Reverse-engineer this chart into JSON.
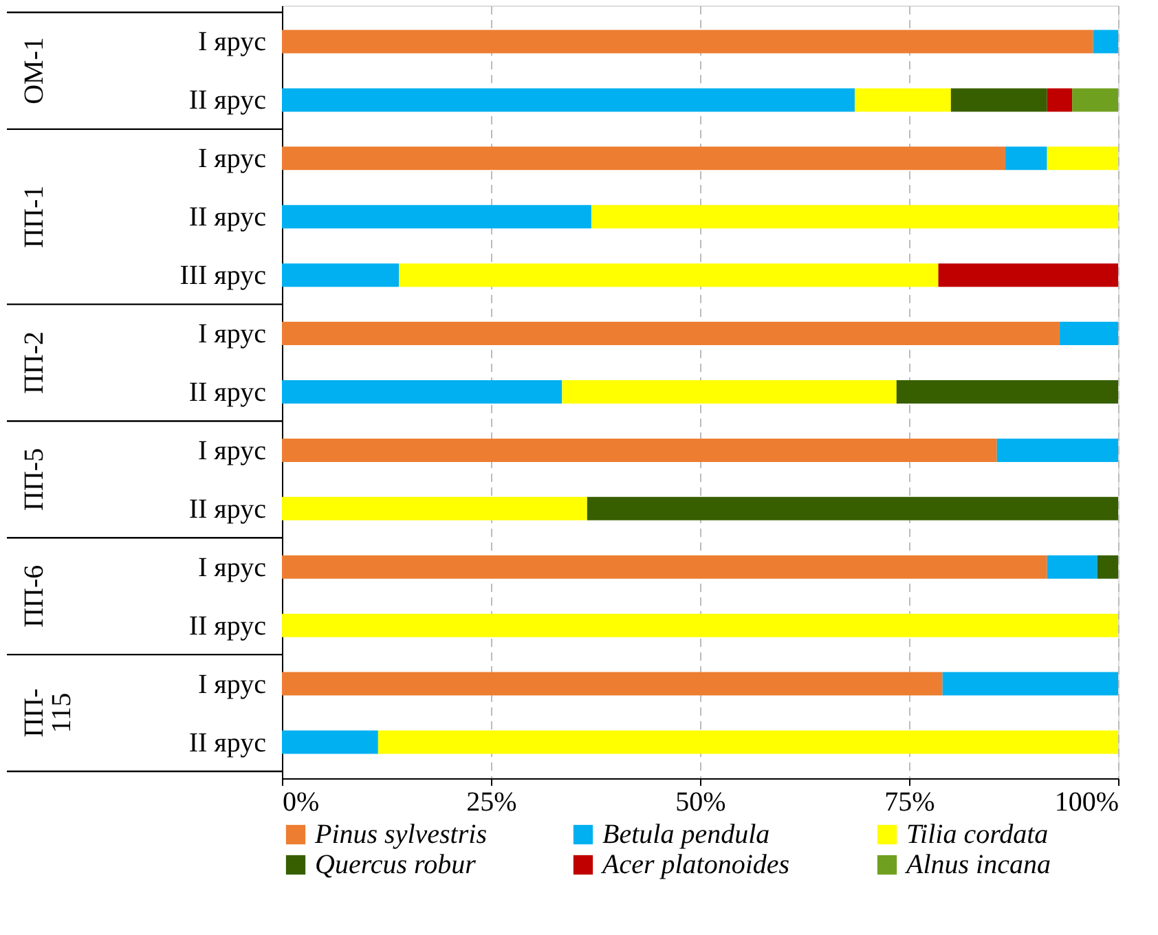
{
  "chart_data": {
    "type": "bar",
    "orientation": "horizontal",
    "stacked": true,
    "categories": [
      "I ярус",
      "II ярус",
      "I ярус",
      "II ярус",
      "III ярус",
      "I ярус",
      "II ярус",
      "I ярус",
      "II ярус",
      "I ярус",
      "II ярус",
      "I ярус",
      "II ярус"
    ],
    "series": [
      {
        "name": "Pinus sylvestris",
        "color": "#ed7d31",
        "values": [
          97,
          null,
          86.5,
          null,
          null,
          93,
          null,
          85.5,
          null,
          91.5,
          null,
          79,
          null
        ]
      },
      {
        "name": "Betula pendula",
        "color": "#00b0f0",
        "values": [
          3,
          68.5,
          5,
          37,
          14,
          7,
          33.5,
          14.5,
          null,
          6,
          null,
          21,
          11.5
        ]
      },
      {
        "name": "Tilia cordata",
        "color": "#ffff00",
        "values": [
          null,
          11.5,
          8.5,
          63,
          64.5,
          null,
          40,
          null,
          36.5,
          null,
          100,
          null,
          88.5
        ]
      },
      {
        "name": "Quercus robur",
        "color": "#375f00",
        "values": [
          null,
          11.5,
          null,
          null,
          null,
          null,
          26.5,
          null,
          63.5,
          2.5,
          null,
          null,
          null
        ]
      },
      {
        "name": "Acer platonoides",
        "color": "#c00000",
        "values": [
          null,
          3,
          null,
          null,
          21.5,
          null,
          null,
          null,
          null,
          null,
          null,
          null,
          null
        ]
      },
      {
        "name": "Alnus incana",
        "color": "#70a020",
        "values": [
          null,
          5.5,
          null,
          null,
          null,
          null,
          null,
          null,
          null,
          null,
          null,
          null,
          null
        ]
      }
    ],
    "xlim": [
      0,
      100
    ],
    "xticks": [
      {
        "value": 0,
        "label": "0%"
      },
      {
        "value": 25,
        "label": "25%"
      },
      {
        "value": 50,
        "label": "50%"
      },
      {
        "value": 75,
        "label": "75%"
      },
      {
        "value": 100,
        "label": "100%"
      }
    ],
    "grid": "x",
    "legend": "bottom",
    "annotations": [
      "ОМ-1",
      "ПП-1",
      "ПП-2",
      "ПП-5",
      "ПП-6",
      "ПП-115"
    ]
  }
}
